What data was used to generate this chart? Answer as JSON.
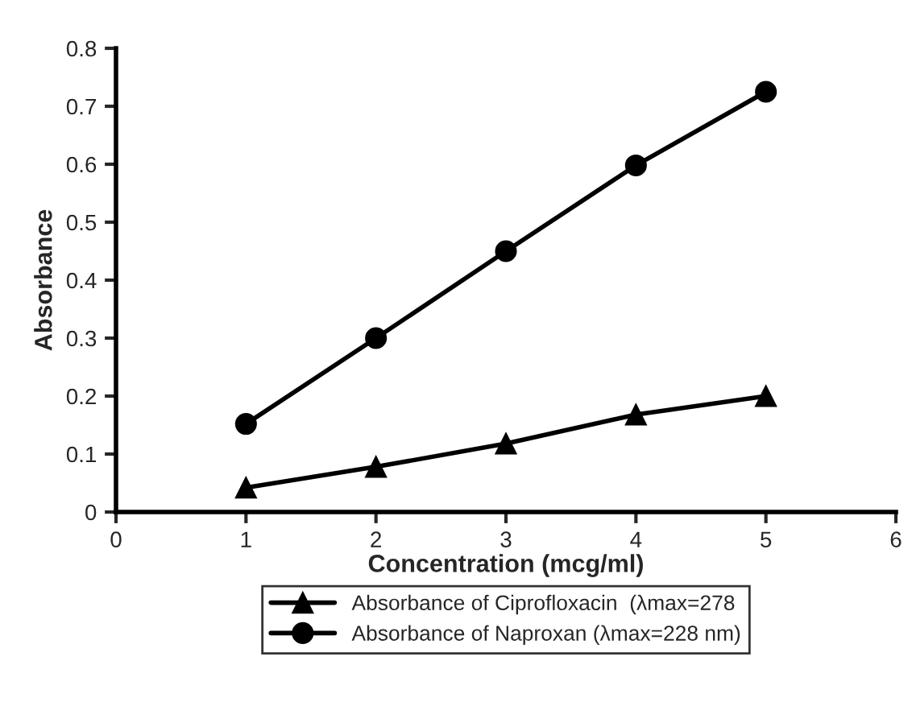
{
  "chart_data": {
    "type": "line",
    "xlabel": "Concentration (mcg/ml)",
    "ylabel": "Absorbance",
    "x": [
      1,
      2,
      3,
      4,
      5
    ],
    "series": [
      {
        "name": "Absorbance of Ciprofloxacin  (λmax=278",
        "color": "#000000",
        "marker": "triangle",
        "values": [
          0.042,
          0.078,
          0.118,
          0.168,
          0.2
        ]
      },
      {
        "name": "Absorbance of Naproxan (λmax=228 nm)",
        "color": "#000000",
        "marker": "circle",
        "values": [
          0.152,
          0.3,
          0.45,
          0.598,
          0.725
        ]
      }
    ],
    "xlim": [
      0,
      6
    ],
    "xticks": [
      0,
      1,
      2,
      3,
      4,
      5,
      6
    ],
    "ylim": [
      0,
      0.8
    ],
    "yticks": [
      0,
      0.1,
      0.2,
      0.3,
      0.4,
      0.5,
      0.6,
      0.7,
      0.8
    ],
    "grid": false,
    "legend": "bottom",
    "line_style": "solid"
  }
}
